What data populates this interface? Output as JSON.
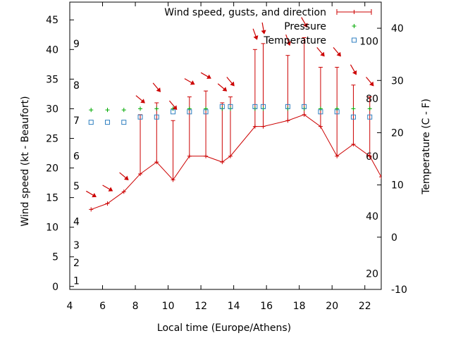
{
  "chart_data": {
    "type": "line",
    "xlabel": "Local time (Europe/Athens)",
    "ylabel": "Wind speed (kt - Beaufort)",
    "y2label": "Temperature (C - F)",
    "xlim": [
      4,
      23
    ],
    "ylim": [
      -0.5,
      48
    ],
    "y2lim": [
      -10,
      45
    ],
    "xticks": [
      4,
      6,
      8,
      10,
      12,
      14,
      16,
      18,
      20,
      22
    ],
    "yticks": [
      0,
      5,
      10,
      15,
      20,
      25,
      30,
      35,
      40,
      45
    ],
    "y2ticks": [
      -10,
      0,
      10,
      20,
      30,
      40
    ],
    "beaufort_scale": [
      {
        "label": "1",
        "y": 1
      },
      {
        "label": "2",
        "y": 4
      },
      {
        "label": "3",
        "y": 7
      },
      {
        "label": "4",
        "y": 11
      },
      {
        "label": "5",
        "y": 17
      },
      {
        "label": "6",
        "y": 22
      },
      {
        "label": "7",
        "y": 28
      },
      {
        "label": "8",
        "y": 34
      },
      {
        "label": "9",
        "y": 41
      }
    ],
    "fahrenheit_scale": [
      {
        "label": "20",
        "y2": -7
      },
      {
        "label": "40",
        "y2": 4
      },
      {
        "label": "60",
        "y2": 15.5
      },
      {
        "label": "80",
        "y2": 26.5
      },
      {
        "label": "100",
        "y2": 37.5
      }
    ],
    "legend": {
      "wind": "Wind speed, gusts, and direction",
      "pressure": "Pressure",
      "temperature": "Temperature"
    },
    "series": [
      {
        "key": "wind",
        "color": "#cc0000",
        "x": [
          5.3,
          6.3,
          7.3,
          8.3,
          9.3,
          10.3,
          11.3,
          12.3,
          13.3,
          13.8,
          15.3,
          15.8,
          17.3,
          18.3,
          19.3,
          20.3,
          21.3,
          22.3,
          23.0
        ],
        "y": [
          13,
          14,
          16,
          19,
          21,
          18,
          22,
          22,
          21,
          22,
          27,
          27,
          28,
          29,
          27,
          22,
          24,
          22,
          18.5
        ],
        "gust": [
          null,
          null,
          null,
          29,
          31,
          28,
          32,
          33,
          31,
          32,
          40,
          41,
          39,
          42,
          37,
          37,
          34,
          32,
          null
        ],
        "direction_deg": [
          300,
          300,
          310,
          310,
          320,
          320,
          300,
          300,
          310,
          320,
          340,
          350,
          340,
          330,
          320,
          320,
          330,
          320,
          null
        ]
      },
      {
        "key": "pressure",
        "color": "#00aa00",
        "x": [
          5.3,
          6.3,
          7.3,
          8.3,
          9.3,
          10.3,
          11.3,
          12.3,
          13.3,
          13.8,
          15.3,
          15.8,
          17.3,
          18.3,
          19.3,
          20.3,
          21.3,
          22.3
        ],
        "y": [
          29.8,
          29.8,
          29.8,
          30,
          30,
          30,
          30,
          30,
          30,
          30,
          30,
          30,
          30,
          30,
          30,
          30,
          30,
          30
        ]
      },
      {
        "key": "temperature",
        "color": "#2f7fc0",
        "x": [
          5.3,
          6.3,
          7.3,
          8.3,
          9.3,
          10.3,
          11.3,
          12.3,
          13.3,
          13.8,
          15.3,
          15.8,
          17.3,
          18.3,
          19.3,
          20.3,
          21.3,
          22.3
        ],
        "y2": [
          22,
          22,
          22,
          23,
          23,
          24,
          24,
          24,
          25,
          25,
          25,
          25,
          25,
          25,
          24,
          24,
          23,
          23
        ]
      }
    ]
  }
}
